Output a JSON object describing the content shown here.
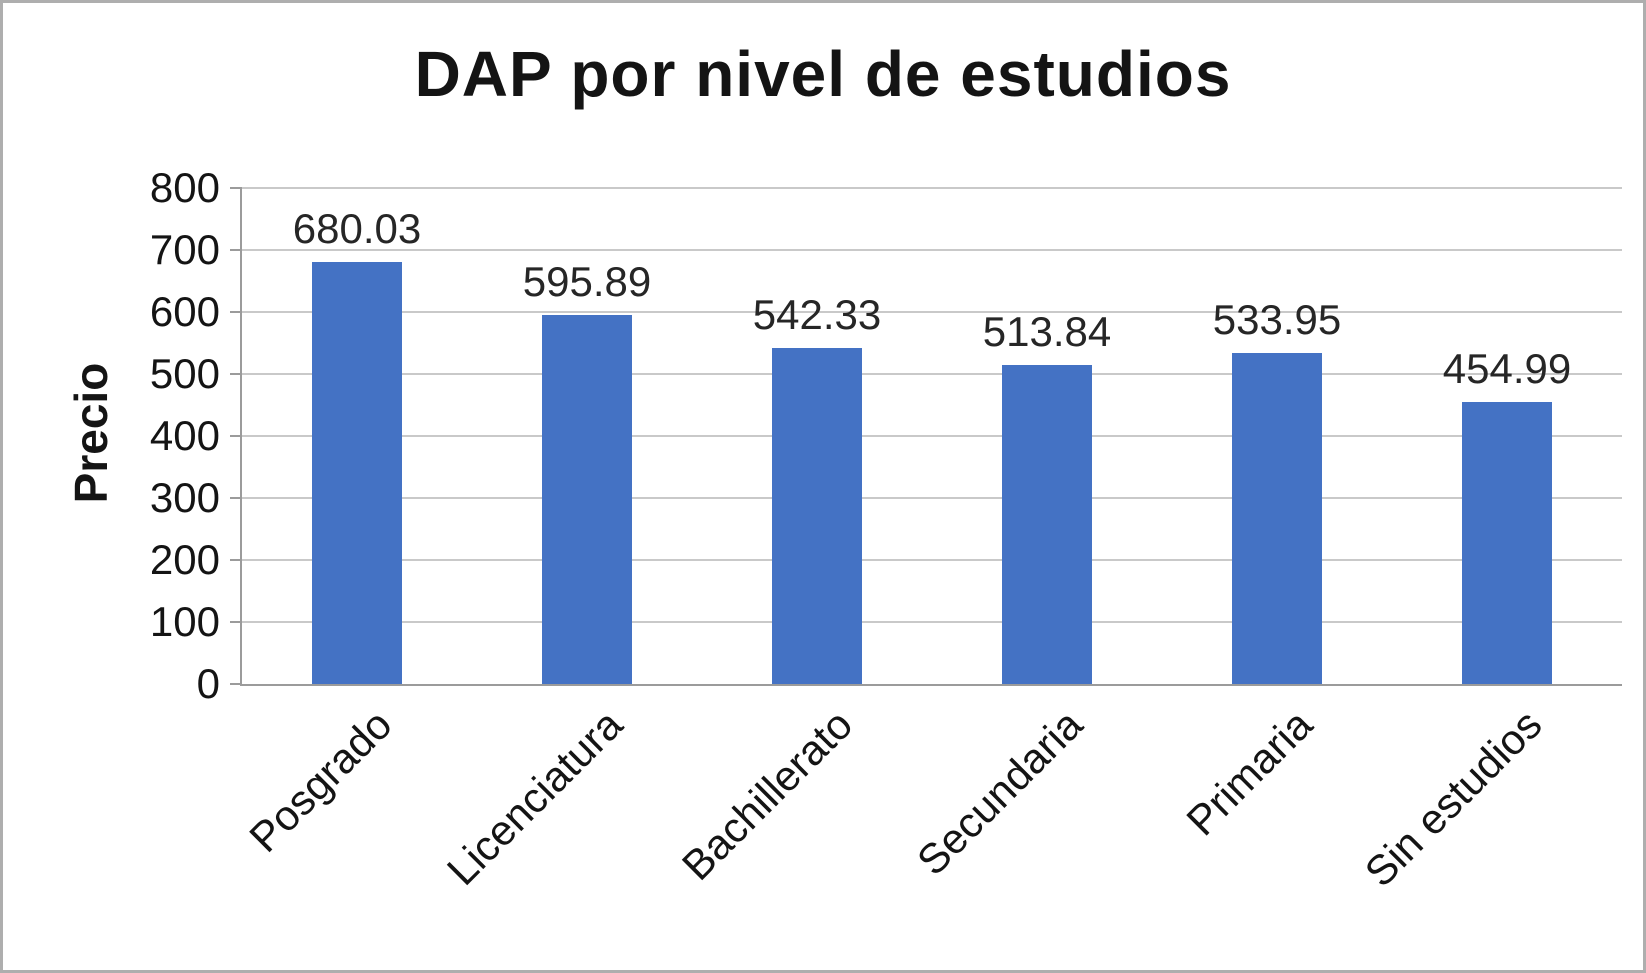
{
  "chart_data": {
    "type": "bar",
    "title": "DAP por nivel de estudios",
    "xlabel": "",
    "ylabel": "Precio",
    "categories": [
      "Posgrado",
      "Licenciatura",
      "Bachillerato",
      "Secundaria",
      "Primaria",
      "Sin estudios"
    ],
    "values": [
      680.03,
      595.89,
      542.33,
      513.84,
      533.95,
      454.99
    ],
    "value_labels": [
      "680.03",
      "595.89",
      "542.33",
      "513.84",
      "533.95",
      "454.99"
    ],
    "ylim": [
      0,
      800
    ],
    "ytick_step": 100,
    "grid": "horizontal",
    "legend": "none",
    "bar_color": "#4472C4",
    "gridline_color": "#c9c9c9",
    "axis_color": "#9b9b9b",
    "text_color": "#141414"
  }
}
